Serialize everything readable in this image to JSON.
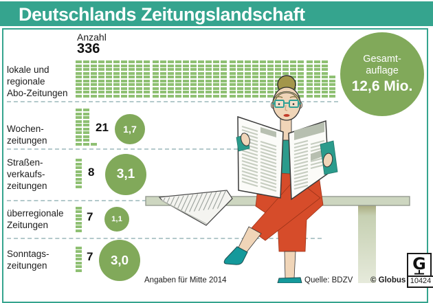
{
  "title": "Deutschlands Zeitungslandschaft",
  "anzahl_label": "Anzahl",
  "rows": [
    {
      "label": "lokale und\nregionale\nAbo-Zeitungen",
      "count": 336,
      "circulation": null,
      "circulation_label": null
    },
    {
      "label": "Wochen-\nzeitungen",
      "count": 21,
      "circulation": 1.7,
      "circulation_label": "1,7"
    },
    {
      "label": "Straßen-\nverkaufs-\nzeitungen",
      "count": 8,
      "circulation": 3.1,
      "circulation_label": "3,1"
    },
    {
      "label": "überregionale\nZeitungen",
      "count": 7,
      "circulation": 1.1,
      "circulation_label": "1,1"
    },
    {
      "label": "Sonntags-\nzeitungen",
      "count": 7,
      "circulation": 3.0,
      "circulation_label": "3,0"
    }
  ],
  "total": {
    "line1": "Gesamt-",
    "line2": "auflage",
    "value": 12.6,
    "value_label": "12,6 Mio."
  },
  "footnote": "Angaben für Mitte 2014",
  "source": "Quelle: BDZV",
  "copyright": "© Globus",
  "globus_id": "10424",
  "colors": {
    "accent_teal": "#35a48e",
    "pictogram_green": "#8fc073",
    "circle_green": "#81a95a"
  },
  "chart_data": {
    "type": "bar",
    "variant": "pictogram_isotype",
    "title": "Deutschlands Zeitungslandschaft",
    "categories": [
      "lokale und regionale Abo-Zeitungen",
      "Wochenzeitungen",
      "Straßenverkaufszeitungen",
      "überregionale Zeitungen",
      "Sonntagszeitungen"
    ],
    "series": [
      {
        "name": "Anzahl",
        "values": [
          336,
          21,
          8,
          7,
          7
        ]
      },
      {
        "name": "Auflage (Mio.)",
        "values": [
          null,
          1.7,
          3.1,
          1.1,
          3.0
        ]
      }
    ],
    "total_annotation": {
      "label": "Gesamtauflage",
      "value_mio": 12.6
    },
    "footnote": "Angaben für Mitte 2014",
    "source": "Quelle: BDZV",
    "legend_position": "none"
  }
}
